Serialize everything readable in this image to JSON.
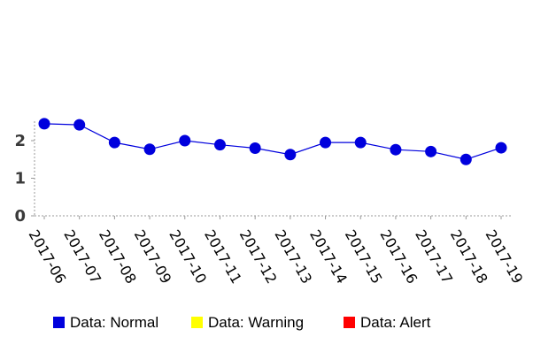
{
  "chart_data": {
    "type": "line",
    "title": "",
    "xlabel": "",
    "ylabel": "",
    "categories": [
      "2017-06",
      "2017-07",
      "2017-08",
      "2017-09",
      "2017-10",
      "2017-11",
      "2017-12",
      "2017-13",
      "2017-14",
      "2017-15",
      "2017-16",
      "2017-17",
      "2017-18",
      "2017-19"
    ],
    "series": [
      {
        "name": "",
        "color": "#0000dd",
        "values": [
          2.45,
          2.42,
          1.95,
          1.77,
          2.0,
          1.89,
          1.8,
          1.63,
          1.95,
          1.95,
          1.76,
          1.71,
          1.5,
          1.81
        ]
      }
    ],
    "yticks": [
      "0",
      "1",
      "2"
    ],
    "ylim": [
      0,
      2.5
    ],
    "grid": false,
    "legend": {
      "position": "bottom",
      "items": [
        {
          "label": "Data: Normal",
          "color": "#0000dd"
        },
        {
          "label": "Data: Warning",
          "color": "#ffff00"
        },
        {
          "label": "Data: Alert",
          "color": "#ff0000"
        }
      ]
    }
  }
}
